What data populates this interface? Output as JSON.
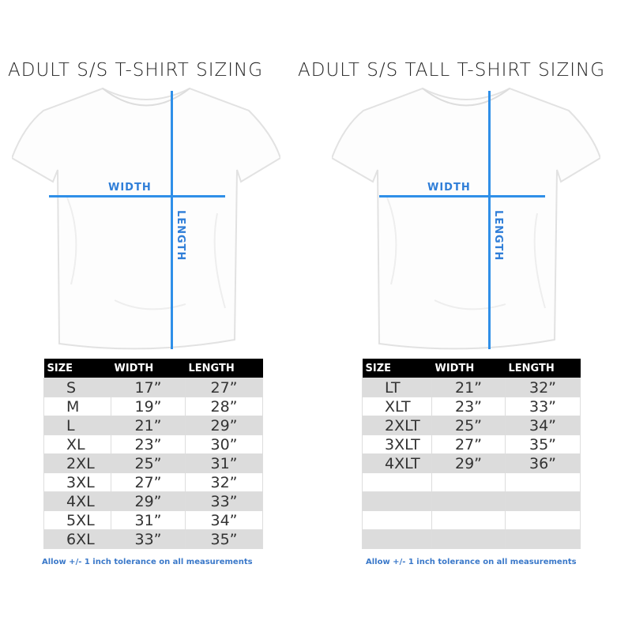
{
  "charts": [
    {
      "title": "ADULT S/S T-SHIRT SIZING",
      "width_label": "WIDTH",
      "length_label": "LENGTH",
      "headers": [
        "SIZE",
        "WIDTH",
        "LENGTH"
      ],
      "rows": [
        [
          "S",
          "17”",
          "27”"
        ],
        [
          "M",
          "19”",
          "28”"
        ],
        [
          "L",
          "21”",
          "29”"
        ],
        [
          "XL",
          "23”",
          "30”"
        ],
        [
          "2XL",
          "25”",
          "31”"
        ],
        [
          "3XL",
          "27”",
          "32”"
        ],
        [
          "4XL",
          "29”",
          "33”"
        ],
        [
          "5XL",
          "31”",
          "34”"
        ],
        [
          "6XL",
          "33”",
          "35”"
        ]
      ],
      "note": "Allow +/- 1 inch tolerance on all measurements"
    },
    {
      "title": "ADULT S/S TALL T-SHIRT SIZING",
      "width_label": "WIDTH",
      "length_label": "LENGTH",
      "headers": [
        "SIZE",
        "WIDTH",
        "LENGTH"
      ],
      "rows": [
        [
          "LT",
          "21”",
          "32”"
        ],
        [
          "XLT",
          "23”",
          "33”"
        ],
        [
          "2XLT",
          "25”",
          "34”"
        ],
        [
          "3XLT",
          "27”",
          "35”"
        ],
        [
          "4XLT",
          "29”",
          "36”"
        ],
        [
          "",
          "",
          ""
        ],
        [
          "",
          "",
          ""
        ],
        [
          "",
          "",
          ""
        ],
        [
          "",
          "",
          ""
        ]
      ],
      "note": "Allow +/- 1 inch tolerance on all measurements"
    }
  ],
  "colors": {
    "measure_line": "#2f8fe8",
    "header_bg": "#000000",
    "alt_row": "#dcdcdc"
  }
}
